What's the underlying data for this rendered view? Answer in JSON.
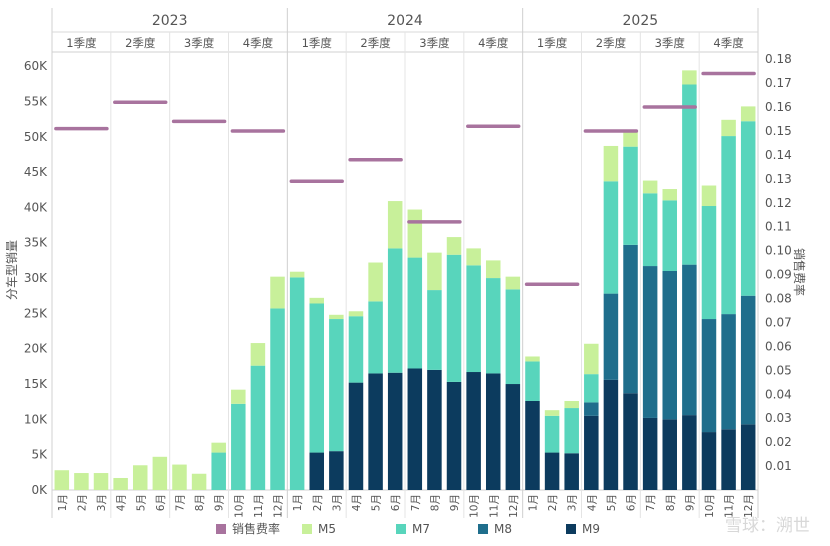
{
  "chart_data": {
    "type": "bar",
    "stacked": true,
    "years": [
      "2023",
      "2024",
      "2025"
    ],
    "quarter_labels": [
      "1季度",
      "2季度",
      "3季度",
      "4季度"
    ],
    "months": [
      "1月",
      "2月",
      "3月",
      "4月",
      "5月",
      "6月",
      "7月",
      "8月",
      "9月",
      "10月",
      "11月",
      "12月"
    ],
    "ylabel": "分车型销量",
    "y2label": "销售费率",
    "ylim": [
      0,
      62000
    ],
    "y2lim": [
      0.0,
      0.183
    ],
    "yticks": [
      0,
      5000,
      10000,
      15000,
      20000,
      25000,
      30000,
      35000,
      40000,
      45000,
      50000,
      55000,
      60000
    ],
    "ytick_labels": [
      "0K",
      "5K",
      "10K",
      "15K",
      "20K",
      "25K",
      "30K",
      "35K",
      "40K",
      "45K",
      "50K",
      "55K",
      "60K"
    ],
    "y2ticks": [
      0.01,
      0.02,
      0.03,
      0.04,
      0.05,
      0.06,
      0.07,
      0.08,
      0.09,
      0.1,
      0.11,
      0.12,
      0.13,
      0.14,
      0.15,
      0.16,
      0.17,
      0.18
    ],
    "y2tick_labels": [
      "0.01",
      "0.02",
      "0.03",
      "0.04",
      "0.05",
      "0.06",
      "0.07",
      "0.08",
      "0.09",
      "0.10",
      "0.11",
      "0.12",
      "0.13",
      "0.14",
      "0.15",
      "0.16",
      "0.17",
      "0.18"
    ],
    "legend": [
      "销售费率",
      "M5",
      "M7",
      "M8",
      "M9"
    ],
    "legend_position": "bottom",
    "colors": {
      "M5": "#c8f09a",
      "M7": "#58d5bc",
      "M8": "#1f6e8c",
      "M9": "#0c3b5e",
      "rate": "#a8739e"
    },
    "series": [
      {
        "name": "M9",
        "values": [
          0,
          0,
          0,
          0,
          0,
          0,
          0,
          0,
          0,
          0,
          0,
          0,
          0,
          5300,
          5500,
          15200,
          16500,
          16600,
          17200,
          17000,
          15300,
          16700,
          16500,
          15000,
          12600,
          5300,
          5200,
          10500,
          15600,
          13700,
          10200,
          10000,
          10600,
          8200,
          8600,
          9300
        ]
      },
      {
        "name": "M8",
        "values": [
          0,
          0,
          0,
          0,
          0,
          0,
          0,
          0,
          0,
          0,
          0,
          0,
          0,
          0,
          0,
          0,
          0,
          0,
          0,
          0,
          0,
          0,
          0,
          0,
          0,
          0,
          0,
          1900,
          12200,
          21000,
          21500,
          21000,
          21300,
          16000,
          16300,
          18200
        ]
      },
      {
        "name": "M7",
        "values": [
          0,
          0,
          0,
          0,
          0,
          0,
          0,
          0,
          5300,
          12200,
          17600,
          25700,
          30100,
          21100,
          18700,
          9400,
          10200,
          17600,
          15700,
          11300,
          18000,
          15100,
          13500,
          13400,
          5600,
          5200,
          6400,
          4000,
          15900,
          13900,
          10300,
          10000,
          25500,
          16000,
          25200,
          24700
        ]
      },
      {
        "name": "M5",
        "values": [
          2800,
          2400,
          2400,
          1700,
          3500,
          4700,
          3600,
          2300,
          1400,
          2000,
          3200,
          4500,
          800,
          800,
          600,
          700,
          5500,
          6700,
          6800,
          5300,
          2500,
          2400,
          2500,
          1800,
          700,
          800,
          1000,
          4300,
          5000,
          2100,
          1800,
          1600,
          2000,
          2900,
          2300,
          2100
        ]
      }
    ],
    "rate": [
      {
        "period": "2023 1季度",
        "value": 0.151
      },
      {
        "period": "2023 2季度",
        "value": 0.162
      },
      {
        "period": "2023 3季度",
        "value": 0.154
      },
      {
        "period": "2023 4季度",
        "value": 0.15
      },
      {
        "period": "2024 1季度",
        "value": 0.129
      },
      {
        "period": "2024 2季度",
        "value": 0.138
      },
      {
        "period": "2024 3季度",
        "value": 0.112
      },
      {
        "period": "2024 4季度",
        "value": 0.152
      },
      {
        "period": "2025 1季度",
        "value": 0.086
      },
      {
        "period": "2025 2季度",
        "value": 0.15
      },
      {
        "period": "2025 3季度",
        "value": 0.16
      },
      {
        "period": "2025 4季度",
        "value": 0.174
      }
    ]
  },
  "watermark": "雪球：溯世"
}
